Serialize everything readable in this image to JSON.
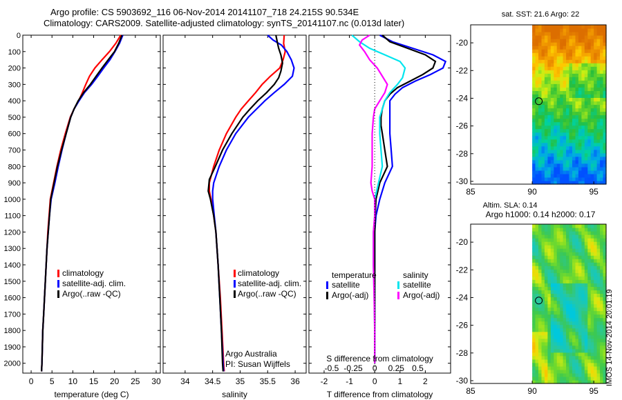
{
  "header": {
    "line1": "Argo profile: CS 5903692_116 06-Nov-2014 20141107_718 24.215S 90.534E",
    "line2": "Climatology: CARS2009. Satellite-adjusted climatology: synTS_20141107.nc (0.013d later)"
  },
  "colors": {
    "climatology": "#ff0000",
    "satellite": "#0000ff",
    "argo": "#000000",
    "salinity_satellite": "#00e5ee",
    "salinity_argo": "#ff00ff"
  },
  "chart_data": [
    {
      "type": "line",
      "name": "temperature",
      "ylabel_ticks": [
        "0",
        "100",
        "200",
        "300",
        "400",
        "500",
        "600",
        "700",
        "800",
        "900",
        "1000",
        "1100",
        "1200",
        "1300",
        "1400",
        "1500",
        "1600",
        "1700",
        "1800",
        "1900",
        "2000"
      ],
      "ylim": [
        0,
        2060
      ],
      "xlim": [
        -2,
        31
      ],
      "xticks": [
        "0",
        "5",
        "10",
        "15",
        "20",
        "25",
        "30"
      ],
      "xtick_values": [
        0,
        5,
        10,
        15,
        20,
        25,
        30
      ],
      "xlabel": "temperature (deg C)",
      "legend": [
        "climatology",
        "satellite-adj. clim.",
        "Argo(..raw -QC)"
      ],
      "series": [
        {
          "name": "climatology",
          "color": "#ff0000",
          "depth": [
            0,
            50,
            100,
            150,
            200,
            250,
            300,
            350,
            400,
            450,
            500,
            600,
            700,
            800,
            900,
            1000,
            1100,
            1200,
            1300,
            1400,
            1500,
            1600,
            1700,
            1800,
            1900,
            2000,
            2050
          ],
          "values": [
            21.5,
            20.3,
            18.8,
            17.0,
            15.3,
            14.0,
            13.1,
            12.3,
            11.4,
            10.3,
            9.4,
            8.2,
            7.1,
            6.2,
            5.4,
            4.6,
            4.3,
            4.0,
            3.8,
            3.6,
            3.4,
            3.2,
            3.0,
            2.8,
            2.7,
            2.6,
            2.5
          ]
        },
        {
          "name": "satellite-adj. clim.",
          "color": "#0000ff",
          "depth": [
            0,
            50,
            100,
            150,
            200,
            250,
            300,
            350,
            400,
            450,
            500,
            600,
            700,
            800,
            900,
            1000,
            1100,
            1200,
            1300,
            1400,
            1500,
            1600,
            1700,
            1800,
            1900,
            2000,
            2050
          ],
          "values": [
            22.0,
            21.2,
            20.1,
            18.9,
            17.4,
            16.0,
            14.5,
            12.8,
            11.5,
            10.3,
            9.5,
            8.4,
            7.4,
            6.5,
            5.7,
            4.8,
            4.4,
            4.1,
            3.8,
            3.6,
            3.4,
            3.2,
            3.0,
            2.8,
            2.7,
            2.6,
            2.5
          ]
        },
        {
          "name": "Argo(..raw -QC)",
          "color": "#000000",
          "depth": [
            0,
            50,
            100,
            150,
            200,
            250,
            300,
            350,
            400,
            450,
            500,
            600,
            700,
            800,
            900,
            1000,
            1100,
            1200,
            1300,
            1400,
            1500,
            1600,
            1700,
            1800,
            1900,
            2000,
            2050
          ],
          "values": [
            21.8,
            21.0,
            20.0,
            18.5,
            17.0,
            15.6,
            14.2,
            12.6,
            11.3,
            10.3,
            9.5,
            8.4,
            7.3,
            6.3,
            5.5,
            4.7,
            4.4,
            4.1,
            3.8,
            3.6,
            3.4,
            3.2,
            3.0,
            2.8,
            2.7,
            2.6,
            2.5
          ]
        }
      ]
    },
    {
      "type": "line",
      "name": "salinity",
      "ylim": [
        0,
        2060
      ],
      "xlim": [
        33.6,
        36.2
      ],
      "xticks": [
        "34",
        "34.5",
        "35",
        "35.5",
        "36"
      ],
      "xtick_values": [
        34,
        34.5,
        35,
        35.5,
        36
      ],
      "xlabel": "salinity",
      "legend": [
        "climatology",
        "satellite-adj. clim.",
        "Argo(..raw -QC)"
      ],
      "annotation": [
        "Argo Australia",
        "PI: Susan Wijffels"
      ],
      "series": [
        {
          "name": "climatology",
          "color": "#ff0000",
          "depth": [
            0,
            50,
            100,
            150,
            200,
            250,
            300,
            350,
            400,
            450,
            500,
            600,
            700,
            800,
            900,
            950,
            1000,
            1100,
            1200,
            1400,
            1600,
            1800,
            2000,
            2050
          ],
          "values": [
            35.8,
            35.79,
            35.82,
            35.78,
            35.72,
            35.55,
            35.4,
            35.28,
            35.15,
            35.02,
            34.92,
            34.75,
            34.62,
            34.52,
            34.44,
            34.44,
            34.47,
            34.52,
            34.56,
            34.6,
            34.64,
            34.67,
            34.7,
            34.71
          ]
        },
        {
          "name": "satellite-adj. clim.",
          "color": "#0000ff",
          "depth": [
            0,
            30,
            60,
            100,
            150,
            200,
            250,
            300,
            350,
            400,
            450,
            500,
            600,
            700,
            800,
            900,
            950,
            1000,
            1100,
            1200,
            1400,
            1600,
            1800,
            2000,
            2050
          ],
          "values": [
            35.5,
            35.6,
            35.75,
            35.85,
            35.93,
            35.98,
            35.95,
            35.8,
            35.62,
            35.45,
            35.3,
            35.15,
            34.92,
            34.75,
            34.62,
            34.52,
            34.5,
            34.5,
            34.53,
            34.56,
            34.6,
            34.63,
            34.66,
            34.69,
            34.7
          ]
        },
        {
          "name": "Argo(..raw -QC)",
          "color": "#000000",
          "depth": [
            0,
            50,
            80,
            120,
            170,
            220,
            260,
            300,
            350,
            400,
            450,
            500,
            600,
            700,
            800,
            880,
            950,
            1000,
            1100,
            1200,
            1400,
            1600,
            1800,
            2000,
            2050
          ],
          "values": [
            35.65,
            35.68,
            35.7,
            35.74,
            35.77,
            35.74,
            35.7,
            35.62,
            35.48,
            35.32,
            35.18,
            35.05,
            34.85,
            34.68,
            34.55,
            34.44,
            34.42,
            34.46,
            34.52,
            34.56,
            34.6,
            34.63,
            34.66,
            34.68,
            34.69
          ]
        }
      ]
    },
    {
      "type": "line",
      "name": "difference",
      "ylim": [
        0,
        2060
      ],
      "xlim": [
        -2.6,
        3.0
      ],
      "xticks": [
        "-2",
        "-1",
        "0",
        "1",
        "2"
      ],
      "xtick_values": [
        -2,
        -1,
        0,
        1,
        2
      ],
      "xlabel": "T difference from climatology",
      "top_xticks": [
        "-0.5",
        "-0.25",
        "0",
        "0.25",
        "0.5"
      ],
      "top_xtick_values": [
        -1.7,
        -0.85,
        0,
        0.85,
        1.7
      ],
      "top_xlabel": "S difference from climatology",
      "legend_temperature": [
        "temperature",
        "satellite",
        "Argo(-adj)"
      ],
      "legend_salinity": [
        "salinity",
        "satellite",
        "Argo(-adj)"
      ],
      "series": [
        {
          "name": "temperature satellite",
          "color": "#0000ff",
          "depth": [
            0,
            40,
            80,
            120,
            160,
            200,
            240,
            280,
            320,
            360,
            400,
            450,
            500,
            550,
            600,
            700,
            800,
            900,
            1000,
            1100,
            1200,
            1400,
            1600,
            1800,
            2000
          ],
          "values": [
            0.2,
            0.7,
            1.5,
            2.3,
            2.8,
            2.7,
            2.2,
            1.6,
            1.1,
            0.8,
            0.6,
            0.6,
            0.6,
            0.6,
            0.6,
            0.65,
            0.7,
            0.4,
            0.2,
            0.05,
            0.0,
            0.0,
            0.0,
            0.0,
            0.0
          ]
        },
        {
          "name": "temperature Argo",
          "color": "#000000",
          "depth": [
            0,
            40,
            80,
            120,
            160,
            200,
            240,
            280,
            320,
            360,
            400,
            450,
            500,
            550,
            600,
            700,
            800,
            850,
            900,
            1000,
            1100,
            1200,
            1400,
            1600,
            1800,
            2000
          ],
          "values": [
            0.3,
            0.6,
            1.3,
            2.0,
            2.4,
            2.3,
            1.9,
            1.4,
            0.9,
            0.6,
            0.4,
            0.3,
            0.25,
            0.25,
            0.3,
            0.4,
            0.5,
            0.35,
            0.2,
            0.05,
            0.02,
            0.0,
            0.0,
            0.0,
            0.0,
            0.0
          ]
        },
        {
          "name": "salinity satellite",
          "color": "#00e5ee",
          "depth": [
            0,
            40,
            80,
            120,
            160,
            200,
            260,
            300,
            350,
            400,
            450,
            500,
            600,
            700,
            800,
            900,
            1000,
            1100,
            1200,
            1400,
            1600,
            1800,
            2000
          ],
          "values": [
            -0.9,
            -0.6,
            -0.2,
            0.4,
            1.0,
            1.2,
            1.1,
            0.9,
            0.6,
            0.4,
            0.3,
            0.2,
            0.2,
            0.25,
            0.3,
            0.15,
            0.0,
            0.0,
            -0.05,
            -0.05,
            -0.02,
            0.0,
            0.0
          ]
        },
        {
          "name": "salinity Argo",
          "color": "#ff00ff",
          "depth": [
            0,
            30,
            60,
            100,
            150,
            200,
            250,
            300,
            350,
            400,
            450,
            500,
            600,
            700,
            800,
            900,
            950,
            1000,
            1100,
            1200,
            1400,
            1600,
            1800,
            2000
          ],
          "values": [
            -0.2,
            -0.5,
            -0.6,
            -0.4,
            -0.2,
            0.1,
            0.3,
            0.5,
            0.4,
            0.2,
            0.0,
            -0.05,
            -0.1,
            -0.1,
            -0.1,
            -0.15,
            -0.1,
            0.0,
            0.0,
            -0.05,
            -0.05,
            -0.02,
            0.0,
            0.0
          ]
        }
      ]
    },
    {
      "type": "heatmap",
      "name": "sat SST",
      "title": "sat. SST: 21.6 Argo: 22",
      "xticks": [
        "85",
        "90",
        "95"
      ],
      "yticks": [
        "-20",
        "-22",
        "-24",
        "-26",
        "-28",
        "-30"
      ],
      "xlim": [
        85,
        96
      ],
      "ylim": [
        -30.2,
        -18.7
      ],
      "data_xlim": [
        90,
        96
      ],
      "argo_position": {
        "lon": 90.534,
        "lat": -24.215
      }
    },
    {
      "type": "heatmap",
      "name": "altimetry SLA",
      "title": "Altim. SLA: 0.14",
      "subtitle": "Argo h1000: 0.14 h2000: 0.17",
      "xticks": [
        "85",
        "90",
        "95"
      ],
      "yticks": [
        "-20",
        "-22",
        "-24",
        "-26",
        "-28",
        "-30"
      ],
      "xlim": [
        85,
        96
      ],
      "ylim": [
        -30.2,
        -18.7
      ],
      "data_xlim": [
        90,
        96
      ],
      "argo_position": {
        "lon": 90.534,
        "lat": -24.215
      }
    }
  ],
  "stamp": "IMOS 14-Nov-2014 20:01:19"
}
